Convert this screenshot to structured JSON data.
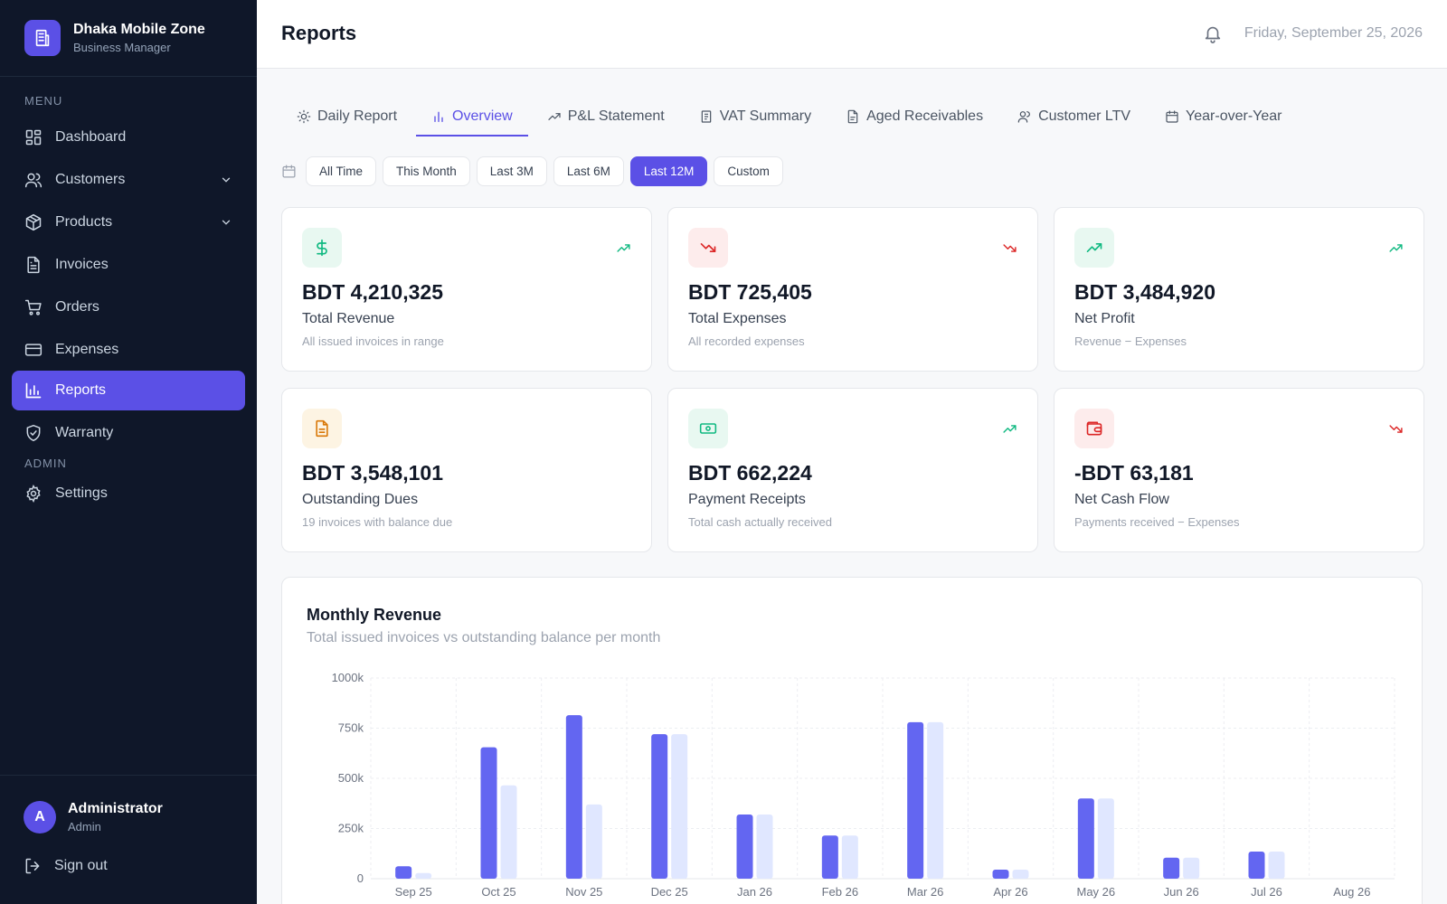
{
  "brand": {
    "name": "Dhaka Mobile Zone",
    "subtitle": "Business Manager"
  },
  "sidebar": {
    "menu_label": "MENU",
    "admin_label": "ADMIN",
    "items": [
      {
        "label": "Dashboard",
        "icon": "grid-icon"
      },
      {
        "label": "Customers",
        "icon": "users-icon",
        "expandable": true
      },
      {
        "label": "Products",
        "icon": "package-icon",
        "expandable": true
      },
      {
        "label": "Invoices",
        "icon": "file-icon"
      },
      {
        "label": "Orders",
        "icon": "cart-icon"
      },
      {
        "label": "Expenses",
        "icon": "credit-card-icon"
      },
      {
        "label": "Reports",
        "icon": "bar-chart-icon",
        "active": true
      },
      {
        "label": "Warranty",
        "icon": "shield-check-icon"
      }
    ],
    "admin_items": [
      {
        "label": "Settings",
        "icon": "gear-icon"
      }
    ],
    "user": {
      "initial": "A",
      "name": "Administrator",
      "role": "Admin"
    },
    "signout_label": "Sign out"
  },
  "header": {
    "title": "Reports",
    "date": "Friday, September 25, 2026"
  },
  "tabs": [
    {
      "label": "Daily Report",
      "icon": "sun-icon"
    },
    {
      "label": "Overview",
      "icon": "bar-chart-icon",
      "active": true
    },
    {
      "label": "P&L Statement",
      "icon": "trend-up-icon"
    },
    {
      "label": "VAT Summary",
      "icon": "receipt-icon"
    },
    {
      "label": "Aged Receivables",
      "icon": "document-icon"
    },
    {
      "label": "Customer LTV",
      "icon": "user-icon"
    },
    {
      "label": "Year-over-Year",
      "icon": "calendar-icon"
    }
  ],
  "ranges": {
    "options": [
      "All Time",
      "This Month",
      "Last 3M",
      "Last 6M",
      "Last 12M",
      "Custom"
    ],
    "selected": "Last 12M"
  },
  "cards": [
    {
      "value": "BDT 4,210,325",
      "title": "Total Revenue",
      "subtitle": "All issued invoices in range",
      "icon": "dollar-icon",
      "trend": "up",
      "accent": "#10b981",
      "bg": "#e8f8f1"
    },
    {
      "value": "BDT 725,405",
      "title": "Total Expenses",
      "subtitle": "All recorded expenses",
      "icon": "trend-down-icon",
      "trend": "down",
      "accent": "#dc2626",
      "bg": "#fdecec"
    },
    {
      "value": "BDT 3,484,920",
      "title": "Net Profit",
      "subtitle": "Revenue − Expenses",
      "icon": "trend-up-icon",
      "trend": "up",
      "accent": "#10b981",
      "bg": "#e8f8f1"
    },
    {
      "value": "BDT 3,548,101",
      "title": "Outstanding Dues",
      "subtitle": "19 invoices with balance due",
      "icon": "document-icon",
      "trend": "none",
      "accent": "#d97706",
      "bg": "#fdf4e3"
    },
    {
      "value": "BDT 662,224",
      "title": "Payment Receipts",
      "subtitle": "Total cash actually received",
      "icon": "banknote-icon",
      "trend": "up",
      "accent": "#10b981",
      "bg": "#e8f8f1"
    },
    {
      "value": "-BDT 63,181",
      "title": "Net Cash Flow",
      "subtitle": "Payments received − Expenses",
      "icon": "wallet-icon",
      "trend": "down",
      "accent": "#dc2626",
      "bg": "#fdecec"
    }
  ],
  "colors": {
    "accent": "#5b50e6",
    "sidebar_bg": "#0f1729",
    "series_primary": "#6366f1",
    "series_secondary": "#e0e7ff"
  },
  "chart": {
    "title": "Monthly Revenue",
    "subtitle": "Total issued invoices vs outstanding balance per month"
  },
  "chart_data": {
    "type": "bar",
    "categories": [
      "Sep 25",
      "Oct 25",
      "Nov 25",
      "Dec 25",
      "Jan 26",
      "Feb 26",
      "Mar 26",
      "Apr 26",
      "May 26",
      "Jun 26",
      "Jul 26",
      "Aug 26"
    ],
    "series": [
      {
        "values": [
          62,
          655,
          815,
          720,
          320,
          215,
          780,
          45,
          400,
          105,
          135,
          0
        ],
        "color": "#6366f1"
      },
      {
        "values": [
          28,
          465,
          370,
          720,
          320,
          215,
          780,
          45,
          400,
          105,
          135,
          0
        ],
        "color": "#e0e7ff"
      }
    ],
    "ylim": [
      0,
      1000
    ],
    "yticks": [
      "0",
      "250k",
      "500k",
      "750k",
      "1000k"
    ],
    "grid": true
  }
}
